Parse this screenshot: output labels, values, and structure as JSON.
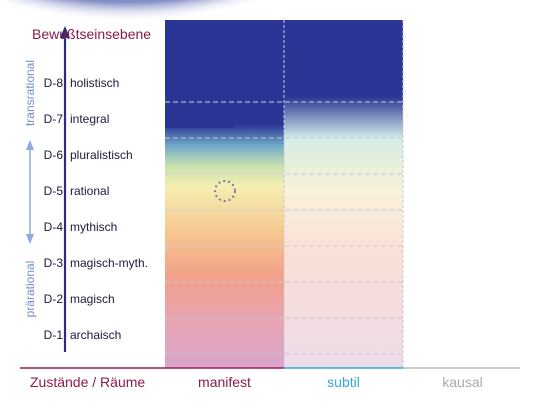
{
  "title": "Bewußtseinsebene",
  "levels": [
    {
      "code": "D-8",
      "name": "holistisch"
    },
    {
      "code": "D-7",
      "name": "integral"
    },
    {
      "code": "D-6",
      "name": "pluralistisch"
    },
    {
      "code": "D-5",
      "name": "rational"
    },
    {
      "code": "D-4",
      "name": "mythisch"
    },
    {
      "code": "D-3",
      "name": "magisch-myth."
    },
    {
      "code": "D-2",
      "name": "magisch"
    },
    {
      "code": "D-1",
      "name": "archaisch"
    }
  ],
  "side_labels": {
    "upper": "transrational",
    "lower": "prärational"
  },
  "x_axis": {
    "title": "Zustände / Räume",
    "states": [
      "manifest",
      "subtil",
      "kausal"
    ]
  },
  "colors": {
    "title": "#8a1c4a",
    "manifest": "#8a1c4a",
    "subtil": "#33aadd",
    "kausal": "#aaaaaa",
    "deep_blue": "#2b3595",
    "arrow": "#2b2d7a",
    "side_arrow": "#8fa8dd"
  }
}
